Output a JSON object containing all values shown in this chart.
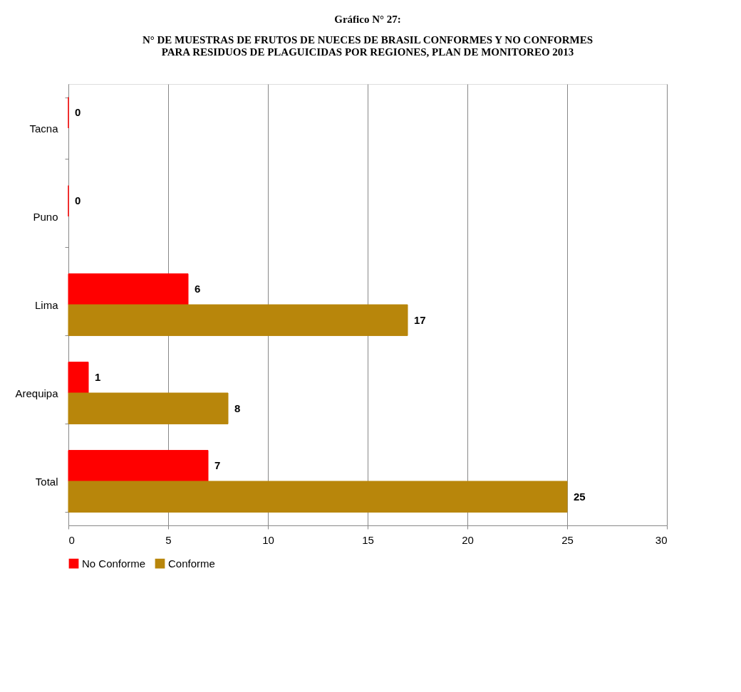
{
  "chart_data": {
    "type": "bar",
    "orientation": "horizontal",
    "title": "Gráfico N° 27:",
    "subtitle": "N° DE MUESTRAS DE FRUTOS DE NUECES DE BRASIL CONFORMES Y NO CONFORMES PARA RESIDUOS DE PLAGUICIDAS POR REGIONES, PLAN DE MONITOREO 2013",
    "categories": [
      "Tacna",
      "Puno",
      "Lima",
      "Arequipa",
      "Total"
    ],
    "series": [
      {
        "name": "No Conforme",
        "color": "#ff0000",
        "values": [
          0,
          0,
          6,
          1,
          7
        ]
      },
      {
        "name": "Conforme",
        "color": "#b8860b",
        "values": [
          null,
          null,
          17,
          8,
          25
        ]
      }
    ],
    "xlim": [
      0,
      30
    ],
    "xticks": [
      0,
      5,
      10,
      15,
      20,
      25,
      30
    ],
    "grid": "x",
    "legend": "bottom",
    "data_labels": true
  }
}
